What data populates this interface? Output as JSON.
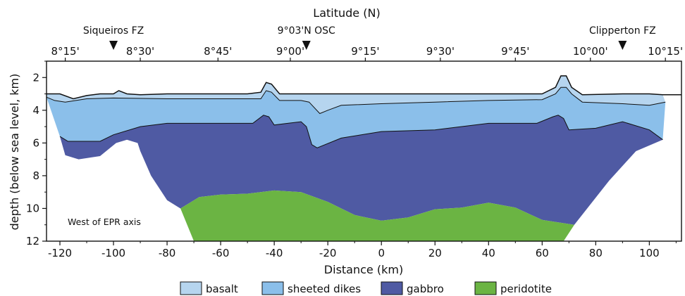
{
  "chart_data": {
    "type": "area",
    "xlabel": "Distance (km)",
    "ylabel": "depth (below sea level, km)",
    "top_axis_label": "Latitude (N)",
    "xlim": [
      -125,
      112
    ],
    "ylim": [
      12,
      1
    ],
    "x_ticks": [
      -120,
      -100,
      -80,
      -60,
      -40,
      -20,
      0,
      20,
      40,
      60,
      80,
      100
    ],
    "y_ticks": [
      2,
      4,
      6,
      8,
      10,
      12
    ],
    "top_ticks": [
      {
        "label": "8°15'",
        "x": -118
      },
      {
        "label": "8°30'",
        "x": -90
      },
      {
        "label": "8°45'",
        "x": -61
      },
      {
        "label": "9°00'",
        "x": -34
      },
      {
        "label": "9°15'",
        "x": -6
      },
      {
        "label": "9°30'",
        "x": 22
      },
      {
        "label": "9°45'",
        "x": 50
      },
      {
        "label": "10°00'",
        "x": 78
      },
      {
        "label": "10°15'",
        "x": 106
      }
    ],
    "features": [
      {
        "label": "Siqueiros FZ",
        "x": -100
      },
      {
        "label": "9°03'N OSC",
        "x": -28
      },
      {
        "label": "Clipperton FZ",
        "x": 90
      }
    ],
    "annotation": "West of EPR axis",
    "legend_position": "bottom",
    "series": [
      {
        "name": "basalt",
        "color": "#b6d5ef"
      },
      {
        "name": "sheeted dikes",
        "color": "#8bbfea"
      },
      {
        "name": "gabbro",
        "color": "#4f5aa3"
      },
      {
        "name": "peridotite",
        "color": "#6bb443"
      }
    ],
    "boundaries": {
      "seafloor": [
        [
          -125,
          3.0
        ],
        [
          -120,
          3.0
        ],
        [
          -115,
          3.3
        ],
        [
          -110,
          3.1
        ],
        [
          -105,
          3.0
        ],
        [
          -100,
          3.0
        ],
        [
          -98,
          2.8
        ],
        [
          -95,
          3.0
        ],
        [
          -90,
          3.05
        ],
        [
          -80,
          3.0
        ],
        [
          -70,
          3.0
        ],
        [
          -60,
          3.0
        ],
        [
          -50,
          3.0
        ],
        [
          -45,
          2.9
        ],
        [
          -43,
          2.3
        ],
        [
          -41,
          2.4
        ],
        [
          -38,
          3.0
        ],
        [
          -30,
          3.0
        ],
        [
          -20,
          3.0
        ],
        [
          -10,
          3.0
        ],
        [
          0,
          3.0
        ],
        [
          20,
          3.0
        ],
        [
          40,
          3.0
        ],
        [
          60,
          3.0
        ],
        [
          65,
          2.6
        ],
        [
          67,
          1.9
        ],
        [
          69,
          1.9
        ],
        [
          71,
          2.6
        ],
        [
          75,
          3.05
        ],
        [
          90,
          3.0
        ],
        [
          100,
          3.0
        ],
        [
          105,
          3.05
        ],
        [
          112,
          3.05
        ]
      ],
      "dikes_top": [
        [
          -125,
          3.2
        ],
        [
          -122,
          3.4
        ],
        [
          -118,
          3.5
        ],
        [
          -110,
          3.3
        ],
        [
          -100,
          3.25
        ],
        [
          -80,
          3.3
        ],
        [
          -60,
          3.3
        ],
        [
          -50,
          3.3
        ],
        [
          -45,
          3.3
        ],
        [
          -43,
          2.8
        ],
        [
          -41,
          2.9
        ],
        [
          -38,
          3.4
        ],
        [
          -30,
          3.4
        ],
        [
          -27,
          3.5
        ],
        [
          -23,
          4.2
        ],
        [
          -20,
          4.0
        ],
        [
          -15,
          3.7
        ],
        [
          0,
          3.6
        ],
        [
          20,
          3.5
        ],
        [
          40,
          3.4
        ],
        [
          60,
          3.35
        ],
        [
          65,
          3.0
        ],
        [
          67,
          2.6
        ],
        [
          69,
          2.6
        ],
        [
          71,
          3.0
        ],
        [
          75,
          3.5
        ],
        [
          90,
          3.6
        ],
        [
          100,
          3.7
        ],
        [
          106,
          3.5
        ]
      ],
      "gabbro_top": [
        [
          -120,
          5.6
        ],
        [
          -117,
          5.9
        ],
        [
          -105,
          5.9
        ],
        [
          -100,
          5.5
        ],
        [
          -90,
          5.0
        ],
        [
          -80,
          4.8
        ],
        [
          -60,
          4.8
        ],
        [
          -48,
          4.8
        ],
        [
          -44,
          4.3
        ],
        [
          -42,
          4.4
        ],
        [
          -40,
          4.9
        ],
        [
          -35,
          4.8
        ],
        [
          -30,
          4.7
        ],
        [
          -28,
          5.0
        ],
        [
          -26,
          6.1
        ],
        [
          -24,
          6.3
        ],
        [
          -15,
          5.7
        ],
        [
          0,
          5.3
        ],
        [
          20,
          5.2
        ],
        [
          40,
          4.8
        ],
        [
          58,
          4.8
        ],
        [
          64,
          4.4
        ],
        [
          66,
          4.3
        ],
        [
          68,
          4.5
        ],
        [
          70,
          5.2
        ],
        [
          80,
          5.1
        ],
        [
          90,
          4.7
        ],
        [
          100,
          5.2
        ],
        [
          105,
          5.8
        ]
      ],
      "peridotite_top": [
        [
          -75,
          10.0
        ],
        [
          -68,
          9.3
        ],
        [
          -60,
          9.15
        ],
        [
          -50,
          9.1
        ],
        [
          -40,
          8.9
        ],
        [
          -30,
          9.0
        ],
        [
          -20,
          9.6
        ],
        [
          -10,
          10.4
        ],
        [
          0,
          10.75
        ],
        [
          10,
          10.55
        ],
        [
          20,
          10.05
        ],
        [
          30,
          9.95
        ],
        [
          40,
          9.65
        ],
        [
          50,
          9.95
        ],
        [
          60,
          10.7
        ],
        [
          72,
          11.0
        ]
      ],
      "basalt_area": [
        [
          -125,
          3.0
        ],
        [
          -120,
          3.0
        ],
        [
          -115,
          3.3
        ],
        [
          -110,
          3.1
        ],
        [
          -105,
          3.0
        ],
        [
          -100,
          3.0
        ],
        [
          -98,
          2.8
        ],
        [
          -95,
          3.0
        ],
        [
          -90,
          3.05
        ],
        [
          -80,
          3.0
        ],
        [
          -70,
          3.0
        ],
        [
          -60,
          3.0
        ],
        [
          -50,
          3.0
        ],
        [
          -45,
          2.9
        ],
        [
          -43,
          2.3
        ],
        [
          -41,
          2.4
        ],
        [
          -38,
          3.0
        ],
        [
          -30,
          3.0
        ],
        [
          -20,
          3.0
        ],
        [
          -10,
          3.0
        ],
        [
          0,
          3.0
        ],
        [
          20,
          3.0
        ],
        [
          40,
          3.0
        ],
        [
          60,
          3.0
        ],
        [
          65,
          2.6
        ],
        [
          67,
          1.9
        ],
        [
          69,
          1.9
        ],
        [
          71,
          2.6
        ],
        [
          75,
          3.05
        ],
        [
          90,
          3.0
        ],
        [
          100,
          3.0
        ],
        [
          105,
          3.05
        ],
        [
          106,
          3.5
        ],
        [
          100,
          3.7
        ],
        [
          90,
          3.6
        ],
        [
          75,
          3.5
        ],
        [
          71,
          3.0
        ],
        [
          69,
          2.6
        ],
        [
          67,
          2.6
        ],
        [
          65,
          3.0
        ],
        [
          60,
          3.35
        ],
        [
          40,
          3.4
        ],
        [
          20,
          3.5
        ],
        [
          0,
          3.6
        ],
        [
          -15,
          3.7
        ],
        [
          -20,
          4.0
        ],
        [
          -23,
          4.2
        ],
        [
          -27,
          3.5
        ],
        [
          -30,
          3.4
        ],
        [
          -38,
          3.4
        ],
        [
          -41,
          2.9
        ],
        [
          -43,
          2.8
        ],
        [
          -45,
          3.3
        ],
        [
          -50,
          3.3
        ],
        [
          -60,
          3.3
        ],
        [
          -80,
          3.3
        ],
        [
          -100,
          3.25
        ],
        [
          -110,
          3.3
        ],
        [
          -118,
          3.5
        ],
        [
          -122,
          3.4
        ],
        [
          -125,
          3.2
        ]
      ],
      "dikes_area": [
        [
          -125,
          3.2
        ],
        [
          -122,
          3.4
        ],
        [
          -118,
          3.5
        ],
        [
          -110,
          3.3
        ],
        [
          -100,
          3.25
        ],
        [
          -80,
          3.3
        ],
        [
          -60,
          3.3
        ],
        [
          -50,
          3.3
        ],
        [
          -45,
          3.3
        ],
        [
          -43,
          2.8
        ],
        [
          -41,
          2.9
        ],
        [
          -38,
          3.4
        ],
        [
          -30,
          3.4
        ],
        [
          -27,
          3.5
        ],
        [
          -23,
          4.2
        ],
        [
          -20,
          4.0
        ],
        [
          -15,
          3.7
        ],
        [
          0,
          3.6
        ],
        [
          20,
          3.5
        ],
        [
          40,
          3.4
        ],
        [
          60,
          3.35
        ],
        [
          65,
          3.0
        ],
        [
          67,
          2.6
        ],
        [
          69,
          2.6
        ],
        [
          71,
          3.0
        ],
        [
          75,
          3.5
        ],
        [
          90,
          3.6
        ],
        [
          100,
          3.7
        ],
        [
          106,
          3.5
        ],
        [
          105,
          5.8
        ],
        [
          100,
          5.2
        ],
        [
          90,
          4.7
        ],
        [
          80,
          5.1
        ],
        [
          70,
          5.2
        ],
        [
          68,
          4.5
        ],
        [
          66,
          4.3
        ],
        [
          64,
          4.4
        ],
        [
          58,
          4.8
        ],
        [
          40,
          4.8
        ],
        [
          20,
          5.2
        ],
        [
          0,
          5.3
        ],
        [
          -15,
          5.7
        ],
        [
          -24,
          6.3
        ],
        [
          -26,
          6.1
        ],
        [
          -28,
          5.0
        ],
        [
          -30,
          4.7
        ],
        [
          -35,
          4.8
        ],
        [
          -40,
          4.9
        ],
        [
          -42,
          4.4
        ],
        [
          -44,
          4.3
        ],
        [
          -48,
          4.8
        ],
        [
          -60,
          4.8
        ],
        [
          -80,
          4.8
        ],
        [
          -90,
          5.0
        ],
        [
          -100,
          5.5
        ],
        [
          -105,
          5.9
        ],
        [
          -117,
          5.9
        ],
        [
          -120,
          5.6
        ]
      ],
      "gabbro_area": [
        [
          -120,
          5.6
        ],
        [
          -117,
          5.9
        ],
        [
          -105,
          5.9
        ],
        [
          -100,
          5.5
        ],
        [
          -90,
          5.0
        ],
        [
          -80,
          4.8
        ],
        [
          -60,
          4.8
        ],
        [
          -48,
          4.8
        ],
        [
          -44,
          4.3
        ],
        [
          -42,
          4.4
        ],
        [
          -40,
          4.9
        ],
        [
          -35,
          4.8
        ],
        [
          -30,
          4.7
        ],
        [
          -28,
          5.0
        ],
        [
          -26,
          6.1
        ],
        [
          -24,
          6.3
        ],
        [
          -15,
          5.7
        ],
        [
          0,
          5.3
        ],
        [
          20,
          5.2
        ],
        [
          40,
          4.8
        ],
        [
          58,
          4.8
        ],
        [
          64,
          4.4
        ],
        [
          66,
          4.3
        ],
        [
          68,
          4.5
        ],
        [
          70,
          5.2
        ],
        [
          80,
          5.1
        ],
        [
          90,
          4.7
        ],
        [
          100,
          5.2
        ],
        [
          105,
          5.8
        ],
        [
          95,
          6.5
        ],
        [
          85,
          8.3
        ],
        [
          72,
          11.0
        ],
        [
          60,
          10.7
        ],
        [
          50,
          9.95
        ],
        [
          40,
          9.65
        ],
        [
          30,
          9.95
        ],
        [
          20,
          10.05
        ],
        [
          10,
          10.55
        ],
        [
          0,
          10.75
        ],
        [
          -10,
          10.4
        ],
        [
          -20,
          9.6
        ],
        [
          -30,
          9.0
        ],
        [
          -40,
          8.9
        ],
        [
          -50,
          9.1
        ],
        [
          -60,
          9.15
        ],
        [
          -68,
          9.3
        ],
        [
          -75,
          10.0
        ],
        [
          -80,
          9.5
        ],
        [
          -86,
          8.0
        ],
        [
          -90,
          6.5
        ],
        [
          -91,
          6.0
        ],
        [
          -95,
          5.8
        ],
        [
          -99,
          6.0
        ],
        [
          -105,
          6.8
        ],
        [
          -113,
          7.0
        ],
        [
          -118,
          6.75
        ]
      ],
      "peridotite_area": [
        [
          -75,
          10.0
        ],
        [
          -68,
          9.3
        ],
        [
          -60,
          9.15
        ],
        [
          -50,
          9.1
        ],
        [
          -40,
          8.9
        ],
        [
          -30,
          9.0
        ],
        [
          -20,
          9.6
        ],
        [
          -10,
          10.4
        ],
        [
          0,
          10.75
        ],
        [
          10,
          10.55
        ],
        [
          20,
          10.05
        ],
        [
          30,
          9.95
        ],
        [
          40,
          9.65
        ],
        [
          50,
          9.95
        ],
        [
          60,
          10.7
        ],
        [
          72,
          11.0
        ],
        [
          68,
          12.0
        ],
        [
          -70,
          12.0
        ]
      ]
    }
  }
}
